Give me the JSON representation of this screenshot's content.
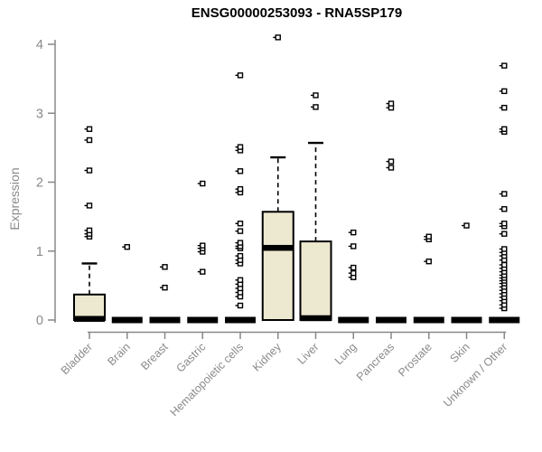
{
  "page": {
    "title": "ENSG00000253093 - RNA5SP179"
  },
  "chart_data": {
    "type": "boxplot",
    "title": "ENSG00000253093 - RNA5SP179",
    "ylabel": "Expression",
    "xlabel": "",
    "ylim": [
      0,
      4
    ],
    "yticks": [
      0,
      1,
      2,
      3,
      4
    ],
    "grid": false,
    "x_label_rotation": 45,
    "categories": [
      "Bladder",
      "Brain",
      "Breast",
      "Gastric",
      "Hematopoietic cells",
      "Kidney",
      "Liver",
      "Lung",
      "Pancreas",
      "Prostate",
      "Skin",
      "Unknown / Other"
    ],
    "series": [
      {
        "category": "Bladder",
        "q1": 0,
        "median": 0.02,
        "q3": 0.37,
        "whisker_low": 0,
        "whisker_high": 0.82,
        "outliers": [
          1.21,
          1.25,
          1.3,
          1.66,
          2.17,
          2.61,
          2.77
        ]
      },
      {
        "category": "Brain",
        "q1": 0,
        "median": 0,
        "q3": 0,
        "whisker_low": 0,
        "whisker_high": 0,
        "outliers": [
          1.06
        ]
      },
      {
        "category": "Breast",
        "q1": 0,
        "median": 0,
        "q3": 0,
        "whisker_low": 0,
        "whisker_high": 0,
        "outliers": [
          0.47,
          0.77
        ]
      },
      {
        "category": "Gastric",
        "q1": 0,
        "median": 0,
        "q3": 0,
        "whisker_low": 0,
        "whisker_high": 0,
        "outliers": [
          0.7,
          0.99,
          1.04,
          1.08,
          1.98
        ]
      },
      {
        "category": "Hematopoietic cells",
        "q1": 0,
        "median": 0,
        "q3": 0,
        "whisker_low": 0,
        "whisker_high": 0,
        "outliers": [
          0.21,
          0.34,
          0.4,
          0.46,
          0.52,
          0.58,
          0.82,
          0.87,
          0.93,
          1.04,
          1.07,
          1.12,
          1.29,
          1.4,
          1.85,
          1.9,
          2.16,
          2.46,
          2.51,
          3.55
        ]
      },
      {
        "category": "Kidney",
        "q1": 0,
        "median": 1.05,
        "q3": 1.57,
        "whisker_low": 0,
        "whisker_high": 2.36,
        "outliers": [
          4.1
        ]
      },
      {
        "category": "Liver",
        "q1": 0,
        "median": 0.03,
        "q3": 1.14,
        "whisker_low": 0,
        "whisker_high": 2.57,
        "outliers": [
          3.09,
          3.26
        ]
      },
      {
        "category": "Lung",
        "q1": 0,
        "median": 0,
        "q3": 0,
        "whisker_low": 0,
        "whisker_high": 0,
        "outliers": [
          0.62,
          0.68,
          0.76,
          1.07,
          1.27
        ]
      },
      {
        "category": "Pancreas",
        "q1": 0,
        "median": 0,
        "q3": 0,
        "whisker_low": 0,
        "whisker_high": 0,
        "outliers": [
          2.21,
          2.3,
          3.08,
          3.14
        ]
      },
      {
        "category": "Prostate",
        "q1": 0,
        "median": 0,
        "q3": 0,
        "whisker_low": 0,
        "whisker_high": 0,
        "outliers": [
          0.85,
          1.17,
          1.21
        ]
      },
      {
        "category": "Skin",
        "q1": 0,
        "median": 0,
        "q3": 0,
        "whisker_low": 0,
        "whisker_high": 0,
        "outliers": [
          1.37
        ]
      },
      {
        "category": "Unknown / Other",
        "q1": 0,
        "median": 0,
        "q3": 0,
        "whisker_low": 0,
        "whisker_high": 0,
        "outliers": [
          0.17,
          0.22,
          0.28,
          0.33,
          0.38,
          0.43,
          0.48,
          0.53,
          0.57,
          0.61,
          0.65,
          0.7,
          0.75,
          0.8,
          0.87,
          0.93,
          0.98,
          1.03,
          1.25,
          1.36,
          1.4,
          1.61,
          1.83,
          2.73,
          2.77,
          3.08,
          3.32,
          3.69
        ]
      }
    ],
    "colors": {
      "box_fill": "#EDE8D0",
      "box_stroke": "#000000",
      "median": "#000000",
      "whisker": "#000000",
      "outlier": "#000000",
      "axis": "#888888",
      "tick_label": "#8a8a8a",
      "title": "#000000",
      "background": "#ffffff"
    }
  }
}
